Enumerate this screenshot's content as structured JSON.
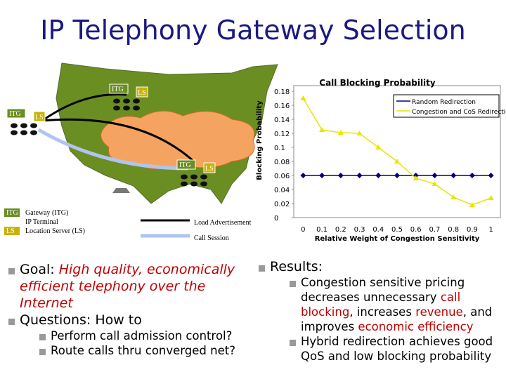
{
  "title": "IP Telephony Gateway Selection",
  "map": {
    "nodes": [
      {
        "itg": "ITG",
        "ls": "LS"
      },
      {
        "itg": "ITG",
        "ls": "LS"
      },
      {
        "itg": "ITG",
        "ls": "LS"
      }
    ],
    "legend": [
      {
        "symbol": "ITG",
        "text": "Gateway (ITG)"
      },
      {
        "text": "IP Terminal"
      },
      {
        "symbol": "LS",
        "text": "Location Server (LS)"
      }
    ],
    "arrows": [
      "Load Advertisement",
      "Call Session"
    ]
  },
  "left_bullets": [
    {
      "runs": [
        {
          "text": "Goal: "
        },
        {
          "text": "High quality, economically efficient telephony over the Internet",
          "color": "#c00000",
          "italic": true
        }
      ]
    },
    {
      "runs": [
        {
          "text": "Questions: How to"
        }
      ],
      "sub": [
        {
          "runs": [
            {
              "text": "Perform call admission control?"
            }
          ]
        },
        {
          "runs": [
            {
              "text": "Route calls thru converged net?"
            }
          ]
        }
      ]
    }
  ],
  "right_bullets": [
    {
      "runs": [
        {
          "text": "Results:"
        }
      ],
      "sub": [
        {
          "runs": [
            {
              "text": "Congestion sensitive pricing decreases unnecessary "
            },
            {
              "text": "call blocking",
              "color": "#c00000"
            },
            {
              "text": ", increases "
            },
            {
              "text": "revenue",
              "color": "#c00000"
            },
            {
              "text": ", and improves "
            },
            {
              "text": "economic efficiency",
              "color": "#c00000"
            }
          ]
        },
        {
          "runs": [
            {
              "text": "Hybrid redirection achieves good QoS and low blocking probability"
            }
          ]
        }
      ]
    }
  ],
  "chart_data": {
    "type": "line",
    "title": "Call Blocking Probability",
    "x_label": "Relative Weight of Congestion Sensitivity",
    "y_label": "Blocking Probability",
    "categories": [
      "0",
      "0.1",
      "0.2",
      "0.3",
      "0.4",
      "0.5",
      "0.6",
      "0.7",
      "0.8",
      "0.9",
      "1"
    ],
    "series": [
      {
        "name": "Random Redirection",
        "color": "#000080",
        "marker": "diamond",
        "values": [
          0.06,
          0.06,
          0.06,
          0.06,
          0.06,
          0.06,
          0.06,
          0.06,
          0.06,
          0.06,
          0.06
        ]
      },
      {
        "name": "Congestion and CoS Redirection",
        "color": "#e6e600",
        "marker": "triangle",
        "values": [
          0.17,
          0.125,
          0.121,
          0.12,
          0.1,
          0.08,
          0.056,
          0.048,
          0.029,
          0.018,
          0.028
        ]
      }
    ],
    "ylim": [
      0,
      0.18
    ],
    "yticks": [
      0,
      0.02,
      0.04,
      0.06,
      0.08,
      0.1,
      0.12,
      0.14,
      0.16,
      0.18
    ],
    "grid": false,
    "legend": "top-right"
  }
}
